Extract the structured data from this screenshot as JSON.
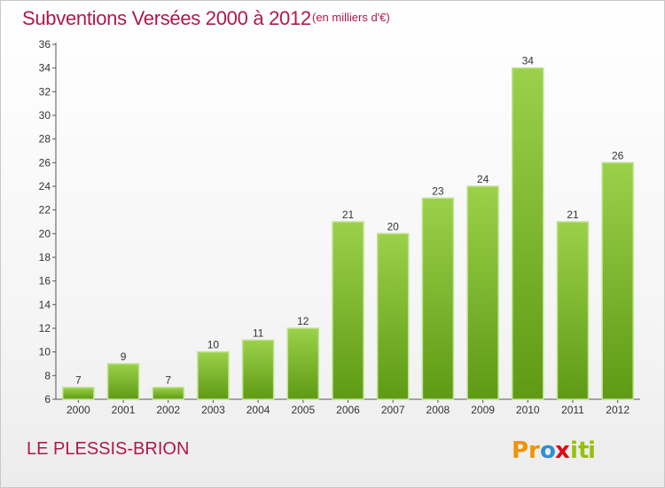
{
  "chart_data": {
    "type": "bar",
    "title": "Subventions Versées 2000 à 2012",
    "subtitle": "(en milliers d'€)",
    "place": "LE PLESSIS-BRION",
    "categories": [
      "2000",
      "2001",
      "2002",
      "2003",
      "2004",
      "2005",
      "2006",
      "2007",
      "2008",
      "2009",
      "2010",
      "2011",
      "2012"
    ],
    "values": [
      7,
      9,
      7,
      10,
      11,
      12,
      21,
      20,
      23,
      24,
      34,
      21,
      26
    ],
    "ylim": [
      6,
      36
    ],
    "yticks": [
      6,
      8,
      10,
      12,
      14,
      16,
      18,
      20,
      22,
      24,
      26,
      28,
      30,
      32,
      34,
      36
    ],
    "grid": false,
    "bar_color": "#7cb833",
    "title_color": "#b0174e"
  },
  "logo": {
    "letters": [
      "P",
      "r",
      "o",
      "x",
      "i",
      "t",
      "i"
    ],
    "colors": [
      "#f39200",
      "#f39200",
      "#2e8fcf",
      "#e30613",
      "#97bf0d",
      "#97bf0d",
      "#97bf0d"
    ]
  }
}
